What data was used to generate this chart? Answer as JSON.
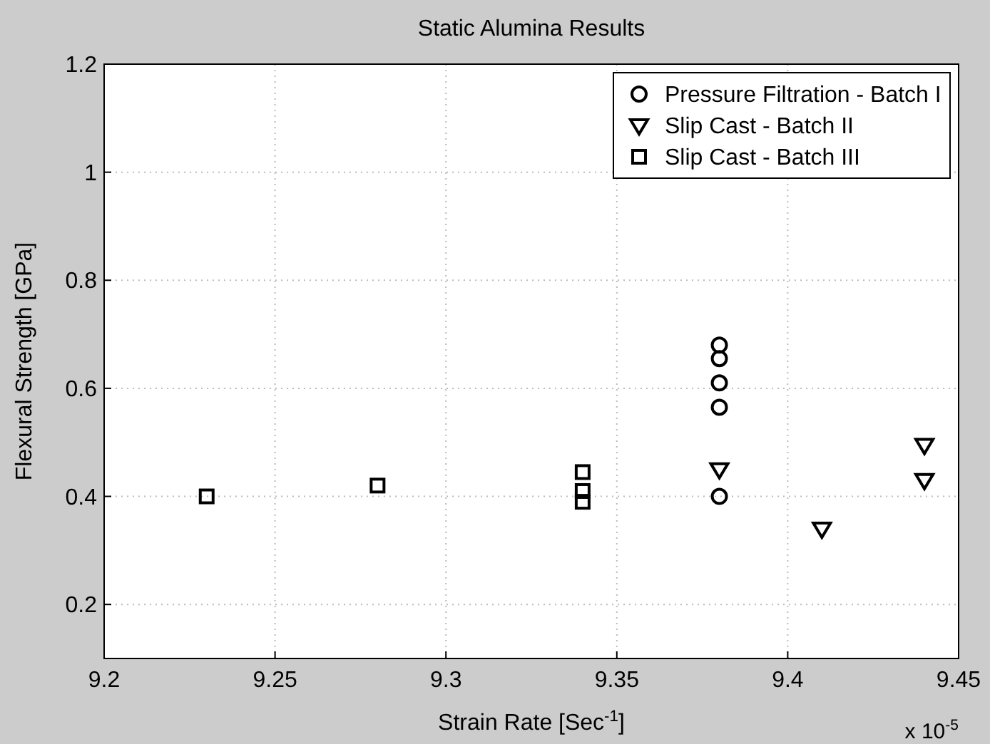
{
  "chart_data": {
    "type": "scatter",
    "title": "Static Alumina Results",
    "xlabel": "Strain Rate [Sec$^{-1}$]",
    "ylabel": "Flexural Strength [GPa]",
    "annotations": [
      "x 10$^{-5}$"
    ],
    "series": [
      {
        "name": "Pressure Filtration - Batch I",
        "color": "#000000",
        "marker": "circle",
        "x": [
          9.38,
          9.38,
          9.38,
          9.38,
          9.38
        ],
        "values": [
          0.68,
          0.655,
          0.61,
          0.565,
          0.4
        ]
      },
      {
        "name": "Slip Cast - Batch II",
        "color": "#000000",
        "marker": "triangle",
        "x": [
          9.38,
          9.41,
          9.44,
          9.44
        ],
        "values": [
          0.45,
          0.34,
          0.495,
          0.43
        ]
      },
      {
        "name": "Slip Cast - Batch III",
        "color": "#000000",
        "marker": "square",
        "x": [
          9.23,
          9.28,
          9.34,
          9.34,
          9.34
        ],
        "values": [
          0.4,
          0.42,
          0.445,
          0.41,
          0.39
        ]
      }
    ],
    "xlim": [
      9.2,
      9.45
    ],
    "xticks": [
      9.2,
      9.25,
      9.3,
      9.35,
      9.4,
      9.45
    ],
    "ylim": [
      0.1,
      1.2
    ],
    "yticks": [
      0.2,
      0.4,
      0.6,
      0.8,
      1,
      1.2
    ],
    "grid": true,
    "legend": "top right"
  }
}
